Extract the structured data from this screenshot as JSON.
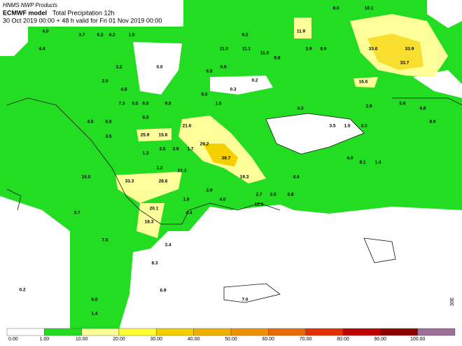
{
  "header": {
    "line1": "HNMS NWP Products",
    "model": "ECMWF model",
    "product": "Total Precipitation 12h",
    "line3": "30 Oct 2019 00:00 + 48 h valid for Fri 01 Nov 2019 00:00"
  },
  "map": {
    "labels": [
      "8.0",
      "10.1",
      "11.9",
      "4.0",
      "3.7",
      "6.2",
      "4.2",
      "1.5",
      "9.2",
      "4.4",
      "11.0",
      "11.1",
      "11.0",
      "9.8",
      "3.9",
      "6.9",
      "33.6",
      "33.9",
      "33.7",
      "3.2",
      "0.0",
      "6.5",
      "9.9",
      "0.2",
      "16.6",
      "2.0",
      "4.8",
      "0.3",
      "6.5",
      "7.3",
      "5.5",
      "6.8",
      "9.8",
      "1.5",
      "4.3",
      "3.9",
      "5.6",
      "6.8",
      "4.6",
      "6.5",
      "6.8",
      "21.6",
      "3.5",
      "1.5",
      "3.3",
      "8.9",
      "3.5",
      "25.9",
      "15.6",
      "29.2",
      "3.5",
      "1.3",
      "1.7",
      "3.9",
      "38.7",
      "4.9",
      "8.1",
      "1.4",
      "1.2",
      "22.3",
      "10.0",
      "19.3",
      "4.4",
      "33.3",
      "28.6",
      "2.9",
      "3.5",
      "2.7",
      "8.8",
      "1.8",
      "4.0",
      "12.5",
      "20.1",
      "3.7",
      "4.4",
      "18.3",
      "7.5",
      "3.4",
      "8.3",
      "0.2",
      "6.0",
      "6.9",
      "7.0",
      "1.4"
    ],
    "meridian_label": "30E"
  },
  "legend": {
    "labels": [
      "0.00",
      "1.00",
      "10.00",
      "20.00",
      "30.00",
      "40.00",
      "50.00",
      "60.00",
      "70.00",
      "80.00",
      "90.00",
      "100.00"
    ],
    "colors": [
      "#ffffff",
      "#22dd22",
      "#ffff99",
      "#ffff33",
      "#f5d000",
      "#f0b000",
      "#ee9000",
      "#e86a00",
      "#e03000",
      "#c00000",
      "#8c0000",
      "#9a6f9a"
    ]
  }
}
